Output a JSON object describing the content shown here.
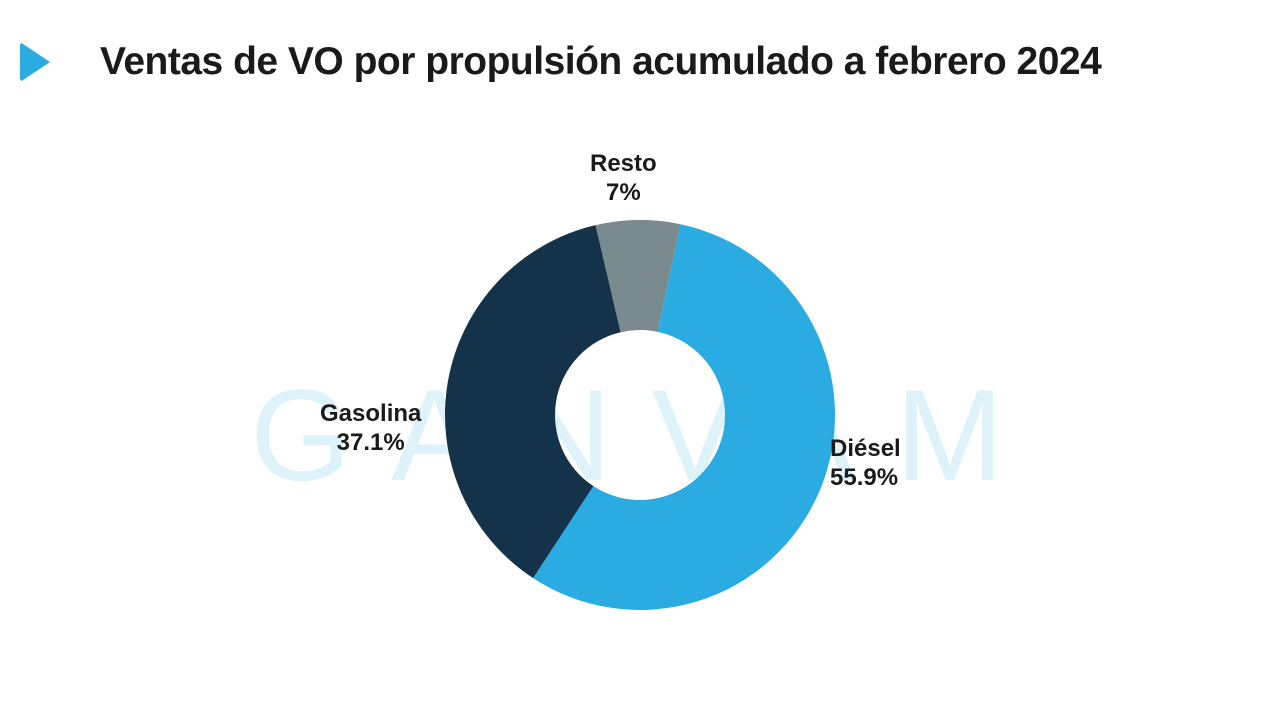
{
  "header": {
    "arrow_color": "#2aace3",
    "title": "Ventas de VO por propulsión acumulado a febrero 2024",
    "title_color": "#1a1a1a"
  },
  "watermark": {
    "text": "GANVAM",
    "color": "#2aace3"
  },
  "chart": {
    "type": "donut",
    "background_color": "#ffffff",
    "inner_hole_color": "#ffffff",
    "outer_radius": 195,
    "inner_radius": 85,
    "segments": [
      {
        "name": "Diésel",
        "value": 55.9,
        "color": "#2aace3",
        "label": "Diésel",
        "percent_label": "55.9%"
      },
      {
        "name": "Gasolina",
        "value": 37.1,
        "color": "#14334a",
        "label": "Gasolina",
        "percent_label": "37.1%"
      },
      {
        "name": "Resto",
        "value": 7.0,
        "color": "#7a8b8f",
        "label": "Resto",
        "percent_label": "7%"
      }
    ],
    "start_angle_deg": 12,
    "label_fontsize": 24,
    "label_fontweight": 700,
    "label_color": "#1a1a1a"
  }
}
